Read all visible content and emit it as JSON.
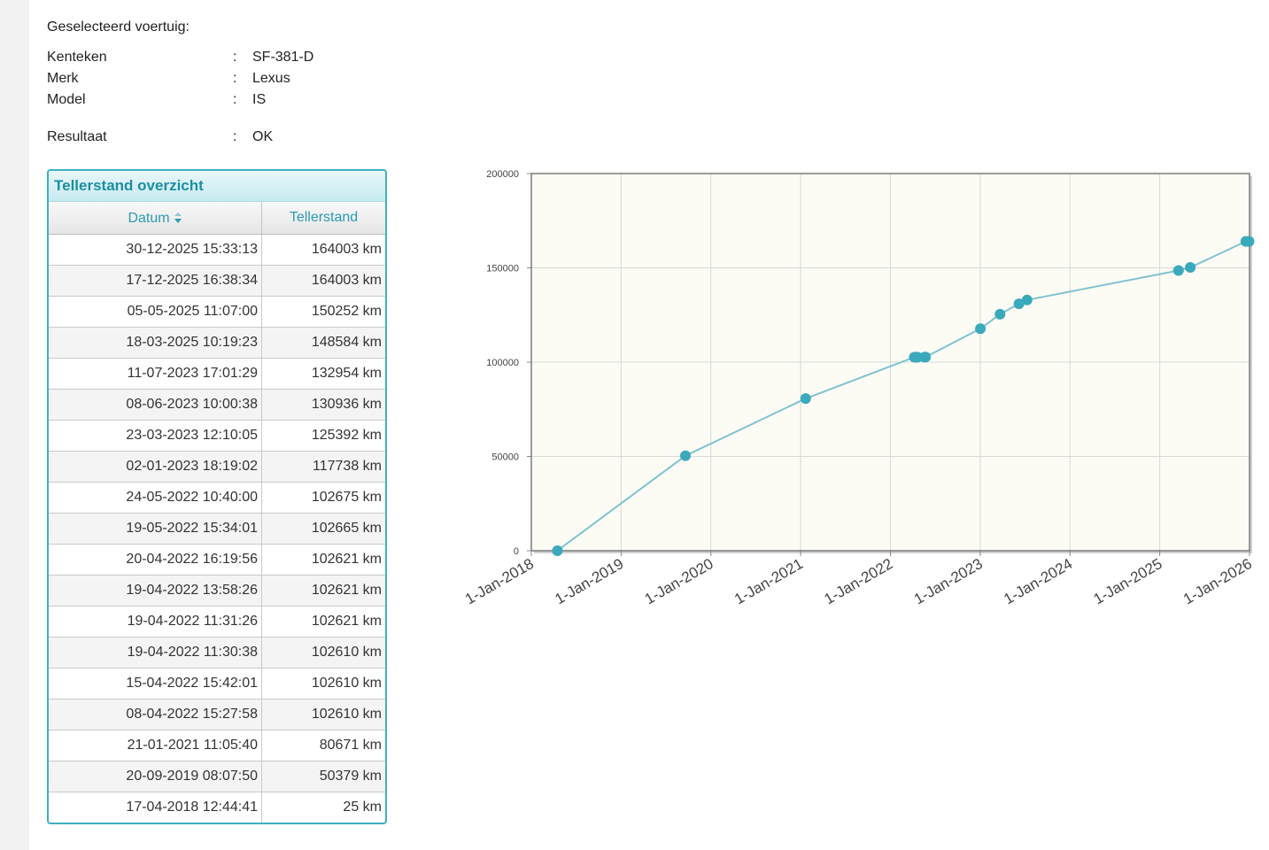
{
  "vehicle": {
    "heading": "Geselecteerd voertuig:",
    "separator": ":",
    "rows": [
      {
        "label": "Kenteken",
        "value": "SF-381-D"
      },
      {
        "label": "Merk",
        "value": "Lexus"
      },
      {
        "label": "Model",
        "value": "IS"
      }
    ],
    "result": {
      "label": "Resultaat",
      "value": "OK"
    }
  },
  "table": {
    "title": "Tellerstand overzicht",
    "columns": {
      "date": "Datum",
      "odometer": "Tellerstand"
    },
    "sort_icon": "sort-arrows-icon",
    "rows": [
      {
        "date": "30-12-2025 15:33:13",
        "km": "164003 km"
      },
      {
        "date": "17-12-2025 16:38:34",
        "km": "164003 km"
      },
      {
        "date": "05-05-2025 11:07:00",
        "km": "150252 km"
      },
      {
        "date": "18-03-2025 10:19:23",
        "km": "148584 km"
      },
      {
        "date": "11-07-2023 17:01:29",
        "km": "132954 km"
      },
      {
        "date": "08-06-2023 10:00:38",
        "km": "130936 km"
      },
      {
        "date": "23-03-2023 12:10:05",
        "km": "125392 km"
      },
      {
        "date": "02-01-2023 18:19:02",
        "km": "117738 km"
      },
      {
        "date": "24-05-2022 10:40:00",
        "km": "102675 km"
      },
      {
        "date": "19-05-2022 15:34:01",
        "km": "102665 km"
      },
      {
        "date": "20-04-2022 16:19:56",
        "km": "102621 km"
      },
      {
        "date": "19-04-2022 13:58:26",
        "km": "102621 km"
      },
      {
        "date": "19-04-2022 11:31:26",
        "km": "102621 km"
      },
      {
        "date": "19-04-2022 11:30:38",
        "km": "102610 km"
      },
      {
        "date": "15-04-2022 15:42:01",
        "km": "102610 km"
      },
      {
        "date": "08-04-2022 15:27:58",
        "km": "102610 km"
      },
      {
        "date": "21-01-2021 11:05:40",
        "km": "80671 km"
      },
      {
        "date": "20-09-2019 08:07:50",
        "km": "50379 km"
      },
      {
        "date": "17-04-2018 12:44:41",
        "km": "25 km"
      }
    ]
  },
  "chart_data": {
    "type": "line",
    "title": "",
    "xlabel": "",
    "ylabel": "",
    "x_ticks": [
      "1-Jan-2018",
      "1-Jan-2019",
      "1-Jan-2020",
      "1-Jan-2021",
      "1-Jan-2022",
      "1-Jan-2023",
      "1-Jan-2024",
      "1-Jan-2025",
      "1-Jan-2026"
    ],
    "y_ticks": [
      "0",
      "50000",
      "100000",
      "150000",
      "200000"
    ],
    "xlim": [
      "2018-01-01",
      "2026-01-01"
    ],
    "ylim": [
      0,
      200000
    ],
    "grid": true,
    "colors": {
      "line": "#7fc3cf",
      "marker": "#3aa9bb",
      "plot_bg": "#fcfcf5",
      "grid": "#d8d8d8"
    },
    "series": [
      {
        "points": [
          {
            "x": "2018-04-17",
            "y": 25
          },
          {
            "x": "2019-09-20",
            "y": 50379
          },
          {
            "x": "2021-01-21",
            "y": 80671
          },
          {
            "x": "2022-04-08",
            "y": 102610
          },
          {
            "x": "2022-04-15",
            "y": 102610
          },
          {
            "x": "2022-04-19",
            "y": 102610
          },
          {
            "x": "2022-04-19",
            "y": 102621
          },
          {
            "x": "2022-04-19",
            "y": 102621
          },
          {
            "x": "2022-04-20",
            "y": 102621
          },
          {
            "x": "2022-05-19",
            "y": 102665
          },
          {
            "x": "2022-05-24",
            "y": 102675
          },
          {
            "x": "2023-01-02",
            "y": 117738
          },
          {
            "x": "2023-03-23",
            "y": 125392
          },
          {
            "x": "2023-06-08",
            "y": 130936
          },
          {
            "x": "2023-07-11",
            "y": 132954
          },
          {
            "x": "2025-03-18",
            "y": 148584
          },
          {
            "x": "2025-05-05",
            "y": 150252
          },
          {
            "x": "2025-12-17",
            "y": 164003
          },
          {
            "x": "2025-12-30",
            "y": 164003
          }
        ]
      }
    ]
  }
}
